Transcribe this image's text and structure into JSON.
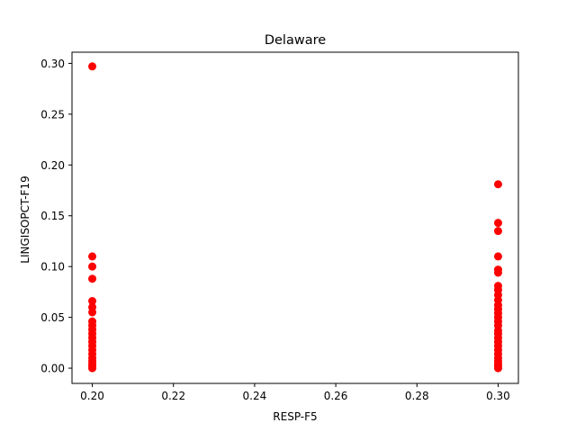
{
  "chart_data": {
    "type": "scatter",
    "title": "Delaware",
    "xlabel": "RESP-F5",
    "ylabel": "LINGISOPCT-F19",
    "xlim": [
      0.195,
      0.305
    ],
    "ylim": [
      -0.015,
      0.311
    ],
    "grid": false,
    "marker_color": "#ff0000",
    "xticks": [
      0.2,
      0.22,
      0.24,
      0.26,
      0.28,
      0.3
    ],
    "xtick_labels": [
      "0.20",
      "0.22",
      "0.24",
      "0.26",
      "0.28",
      "0.30"
    ],
    "yticks": [
      0.0,
      0.05,
      0.1,
      0.15,
      0.2,
      0.25,
      0.3
    ],
    "ytick_labels": [
      "0.00",
      "0.05",
      "0.10",
      "0.15",
      "0.20",
      "0.25",
      "0.30"
    ],
    "series": [
      {
        "points": [
          [
            0.2,
            0.297
          ],
          [
            0.2,
            0.11
          ],
          [
            0.2,
            0.1
          ],
          [
            0.2,
            0.088
          ],
          [
            0.2,
            0.066
          ],
          [
            0.2,
            0.06
          ],
          [
            0.2,
            0.055
          ],
          [
            0.2,
            0.046
          ],
          [
            0.2,
            0.042
          ],
          [
            0.2,
            0.038
          ],
          [
            0.2,
            0.034
          ],
          [
            0.2,
            0.03
          ],
          [
            0.2,
            0.026
          ],
          [
            0.2,
            0.022
          ],
          [
            0.2,
            0.018
          ],
          [
            0.2,
            0.014
          ],
          [
            0.2,
            0.01
          ],
          [
            0.2,
            0.007
          ],
          [
            0.2,
            0.004
          ],
          [
            0.2,
            0.002
          ],
          [
            0.2,
            0.0
          ],
          [
            0.3,
            0.181
          ],
          [
            0.3,
            0.143
          ],
          [
            0.3,
            0.135
          ],
          [
            0.3,
            0.11
          ],
          [
            0.3,
            0.097
          ],
          [
            0.3,
            0.094
          ],
          [
            0.3,
            0.081
          ],
          [
            0.3,
            0.077
          ],
          [
            0.3,
            0.072
          ],
          [
            0.3,
            0.067
          ],
          [
            0.3,
            0.062
          ],
          [
            0.3,
            0.058
          ],
          [
            0.3,
            0.054
          ],
          [
            0.3,
            0.05
          ],
          [
            0.3,
            0.046
          ],
          [
            0.3,
            0.042
          ],
          [
            0.3,
            0.037
          ],
          [
            0.3,
            0.034
          ],
          [
            0.3,
            0.03
          ],
          [
            0.3,
            0.026
          ],
          [
            0.3,
            0.022
          ],
          [
            0.3,
            0.018
          ],
          [
            0.3,
            0.014
          ],
          [
            0.3,
            0.01
          ],
          [
            0.3,
            0.007
          ],
          [
            0.3,
            0.004
          ],
          [
            0.3,
            0.002
          ],
          [
            0.3,
            0.0
          ]
        ]
      }
    ]
  }
}
